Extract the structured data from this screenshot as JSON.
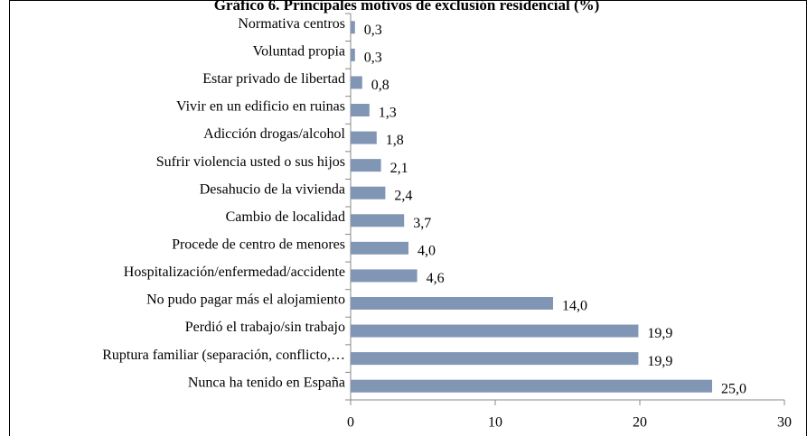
{
  "chart_data": {
    "type": "barh",
    "title": "Gráfico 6. Principales motivos de exclusión residencial (%)",
    "categories": [
      "Normativa centros",
      "Voluntad propia",
      "Estar privado de libertad",
      "Vivir en un edificio en ruinas",
      "Adicción drogas/alcohol",
      "Sufrir violencia usted o sus hijos",
      "Desahucio de la vivienda",
      "Cambio de localidad",
      "Procede de centro de menores",
      "Hospitalización/enfermedad/accidente",
      "No pudo pagar más el alojamiento",
      "Perdió el trabajo/sin trabajo",
      "Ruptura familiar (separación, conflicto,…",
      "Nunca ha tenido en España"
    ],
    "values": [
      0.3,
      0.3,
      0.8,
      1.3,
      1.8,
      2.1,
      2.4,
      3.7,
      4.0,
      4.6,
      14.0,
      19.9,
      19.9,
      25.0
    ],
    "value_labels": [
      "0,3",
      "0,3",
      "0,8",
      "1,3",
      "1,8",
      "2,1",
      "2,4",
      "3,7",
      "4,0",
      "4,6",
      "14,0",
      "19,9",
      "19,9",
      "25,0"
    ],
    "color": "#8096b4",
    "xlim": [
      0,
      30
    ],
    "xticks": [
      0,
      10,
      20,
      30
    ]
  }
}
